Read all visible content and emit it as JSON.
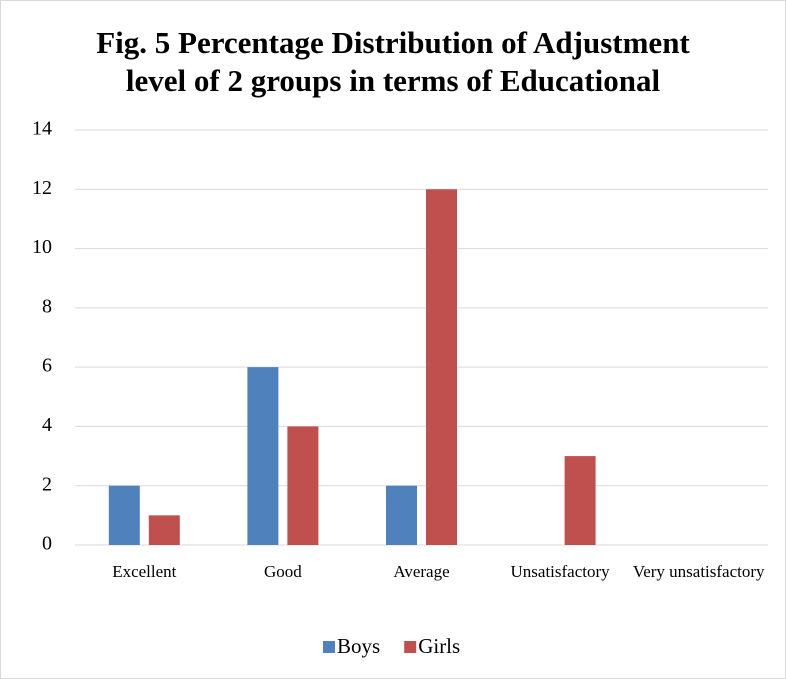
{
  "chart_data": {
    "type": "bar",
    "title": [
      "Fig. 5 Percentage Distribution of Adjustment",
      "level of 2 groups in terms of Educational"
    ],
    "categories": [
      "Excellent",
      "Good",
      "Average",
      "Unsatisfactory",
      "Very unsatisfactory"
    ],
    "series": [
      {
        "name": "Boys",
        "color": "#4f81bd",
        "values": [
          2,
          6,
          2,
          0,
          0
        ]
      },
      {
        "name": "Girls",
        "color": "#c0504d",
        "values": [
          1,
          4,
          12,
          3,
          0
        ]
      }
    ],
    "ylim": [
      0,
      14
    ],
    "yticks": [
      0,
      2,
      4,
      6,
      8,
      10,
      12,
      14
    ],
    "grid": true,
    "legend": "bottom"
  }
}
